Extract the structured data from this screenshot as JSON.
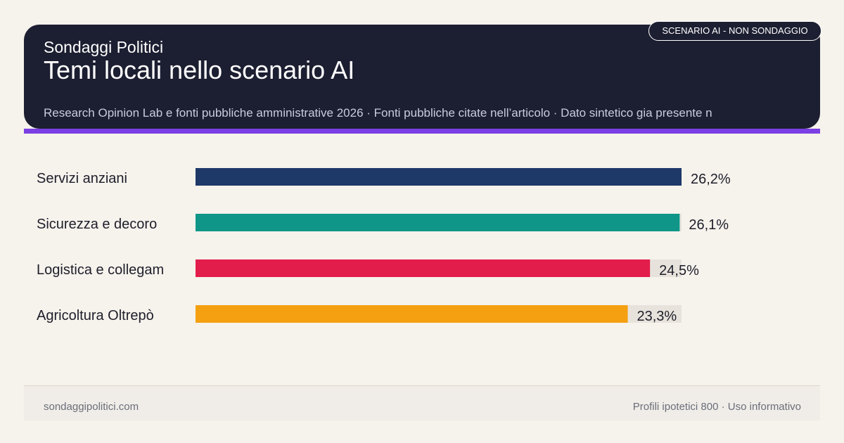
{
  "header": {
    "brand": "Sondaggi Politici",
    "title": "Temi locali nello scenario AI",
    "sources": "Research Opinion Lab e fonti pubbliche amministrative 2026 · Fonti pubbliche citate nell’articolo · Dato sintetico gia presente n",
    "badge": "SCENARIO AI - NON SONDAGGIO"
  },
  "colors": {
    "header_bg": "#1c1e31",
    "accent": "#7b3fe4",
    "track": "#e7e3dc"
  },
  "chart_data": {
    "type": "bar",
    "orientation": "horizontal",
    "categories": [
      "Servizi anziani",
      "Sicurezza e decoro",
      "Logistica e collegam",
      "Agricoltura Oltrepò"
    ],
    "values": [
      26.2,
      26.1,
      24.5,
      23.3
    ],
    "value_labels": [
      "26,2%",
      "26,1%",
      "24,5%",
      "23,3%"
    ],
    "colors": [
      "#1e3868",
      "#0f9688",
      "#e21c4b",
      "#f4a011"
    ],
    "xlim": [
      0,
      26.2
    ],
    "grid": false
  },
  "footer": {
    "left": "sondaggipolitici.com",
    "right": "Profili ipotetici 800 · Uso informativo"
  }
}
